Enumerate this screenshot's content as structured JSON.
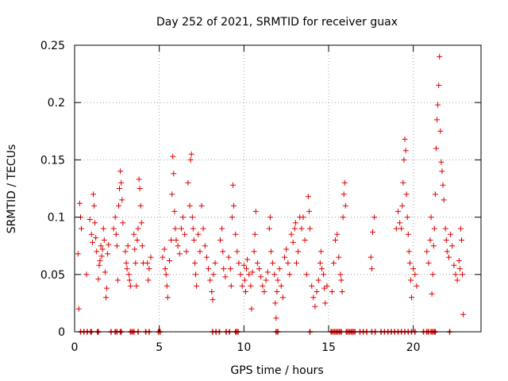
{
  "chart_data": {
    "type": "scatter",
    "title": "Day 252 of 2021, SRMTID for receiver guax",
    "xlabel": "GPS time / hours",
    "ylabel": "SRMTID / TECUs",
    "xlim": [
      0,
      24
    ],
    "ylim": [
      0,
      0.25
    ],
    "xticks": [
      0,
      5,
      10,
      15,
      20
    ],
    "xtick_labels": [
      "0",
      "5",
      "10",
      "15",
      "20"
    ],
    "yticks": [
      0,
      0.05,
      0.1,
      0.15,
      0.2,
      0.25
    ],
    "ytick_labels": [
      "0",
      "0.05",
      "0.1",
      "0.15",
      "0.2",
      "0.25"
    ],
    "grid": true,
    "marker": "+",
    "colors": {
      "series": "#e00000",
      "grid": "#a0a0a0",
      "axis": "#000000"
    },
    "series": [
      {
        "name": "SRMTID",
        "points": [
          [
            0.2,
            0.068
          ],
          [
            0.25,
            0.02
          ],
          [
            0.3,
            0.112
          ],
          [
            0.35,
            0.1
          ],
          [
            0.4,
            0.09
          ],
          [
            0.7,
            0.05
          ],
          [
            0.9,
            0.098
          ],
          [
            1.0,
            0.085
          ],
          [
            1.05,
            0.078
          ],
          [
            1.1,
            0.12
          ],
          [
            1.15,
            0.11
          ],
          [
            1.2,
            0.095
          ],
          [
            1.25,
            0.082
          ],
          [
            1.3,
            0.07
          ],
          [
            1.4,
            0.046
          ],
          [
            1.45,
            0.058
          ],
          [
            1.5,
            0.062
          ],
          [
            1.55,
            0.075
          ],
          [
            1.6,
            0.066
          ],
          [
            1.65,
            0.072
          ],
          [
            1.7,
            0.09
          ],
          [
            1.75,
            0.08
          ],
          [
            1.8,
            0.052
          ],
          [
            1.85,
            0.03
          ],
          [
            1.9,
            0.038
          ],
          [
            1.95,
            0.068
          ],
          [
            2.0,
            0.076
          ],
          [
            2.3,
            0.09
          ],
          [
            2.4,
            0.1
          ],
          [
            2.45,
            0.085
          ],
          [
            2.5,
            0.075
          ],
          [
            2.55,
            0.045
          ],
          [
            2.6,
            0.11
          ],
          [
            2.65,
            0.125
          ],
          [
            2.7,
            0.14
          ],
          [
            2.75,
            0.13
          ],
          [
            2.8,
            0.115
          ],
          [
            2.85,
            0.095
          ],
          [
            3.0,
            0.07
          ],
          [
            3.05,
            0.06
          ],
          [
            3.1,
            0.055
          ],
          [
            3.15,
            0.075
          ],
          [
            3.2,
            0.05
          ],
          [
            3.25,
            0.045
          ],
          [
            3.3,
            0.04
          ],
          [
            3.5,
            0.085
          ],
          [
            3.55,
            0.072
          ],
          [
            3.6,
            0.06
          ],
          [
            3.65,
            0.04
          ],
          [
            3.7,
            0.08
          ],
          [
            3.75,
            0.09
          ],
          [
            3.8,
            0.133
          ],
          [
            3.85,
            0.125
          ],
          [
            3.9,
            0.11
          ],
          [
            3.95,
            0.095
          ],
          [
            4.0,
            0.075
          ],
          [
            4.05,
            0.06
          ],
          [
            4.3,
            0.06
          ],
          [
            4.35,
            0.045
          ],
          [
            4.4,
            0.055
          ],
          [
            4.5,
            0.065
          ],
          [
            5.2,
            0.065
          ],
          [
            5.3,
            0.072
          ],
          [
            5.35,
            0.055
          ],
          [
            5.4,
            0.05
          ],
          [
            5.45,
            0.04
          ],
          [
            5.5,
            0.03
          ],
          [
            5.6,
            0.062
          ],
          [
            5.7,
            0.08
          ],
          [
            5.75,
            0.12
          ],
          [
            5.8,
            0.153
          ],
          [
            5.85,
            0.138
          ],
          [
            5.9,
            0.105
          ],
          [
            5.95,
            0.09
          ],
          [
            6.0,
            0.08
          ],
          [
            6.1,
            0.075
          ],
          [
            6.2,
            0.068
          ],
          [
            6.3,
            0.09
          ],
          [
            6.4,
            0.1
          ],
          [
            6.5,
            0.085
          ],
          [
            6.6,
            0.07
          ],
          [
            6.7,
            0.13
          ],
          [
            6.8,
            0.11
          ],
          [
            6.85,
            0.15
          ],
          [
            6.9,
            0.155
          ],
          [
            6.95,
            0.1
          ],
          [
            7.0,
            0.09
          ],
          [
            7.05,
            0.08
          ],
          [
            7.1,
            0.06
          ],
          [
            7.15,
            0.05
          ],
          [
            7.2,
            0.04
          ],
          [
            7.3,
            0.085
          ],
          [
            7.4,
            0.07
          ],
          [
            7.5,
            0.11
          ],
          [
            7.6,
            0.09
          ],
          [
            7.7,
            0.075
          ],
          [
            7.8,
            0.065
          ],
          [
            7.9,
            0.055
          ],
          [
            8.0,
            0.045
          ],
          [
            8.1,
            0.035
          ],
          [
            8.15,
            0.028
          ],
          [
            8.2,
            0.05
          ],
          [
            8.3,
            0.06
          ],
          [
            8.6,
            0.08
          ],
          [
            8.7,
            0.09
          ],
          [
            8.75,
            0.07
          ],
          [
            8.8,
            0.055
          ],
          [
            8.9,
            0.048
          ],
          [
            9.1,
            0.065
          ],
          [
            9.2,
            0.055
          ],
          [
            9.25,
            0.04
          ],
          [
            9.3,
            0.1
          ],
          [
            9.35,
            0.128
          ],
          [
            9.4,
            0.11
          ],
          [
            9.5,
            0.085
          ],
          [
            9.6,
            0.07
          ],
          [
            9.7,
            0.06
          ],
          [
            9.8,
            0.05
          ],
          [
            9.9,
            0.04
          ],
          [
            10.0,
            0.058
          ],
          [
            10.05,
            0.045
          ],
          [
            10.1,
            0.035
          ],
          [
            10.15,
            0.055
          ],
          [
            10.2,
            0.063
          ],
          [
            10.3,
            0.05
          ],
          [
            10.4,
            0.04
          ],
          [
            10.45,
            0.02
          ],
          [
            10.5,
            0.052
          ],
          [
            10.6,
            0.07
          ],
          [
            10.65,
            0.085
          ],
          [
            10.7,
            0.105
          ],
          [
            10.8,
            0.06
          ],
          [
            10.9,
            0.055
          ],
          [
            11.0,
            0.048
          ],
          [
            11.1,
            0.04
          ],
          [
            11.2,
            0.035
          ],
          [
            11.3,
            0.045
          ],
          [
            11.4,
            0.052
          ],
          [
            11.5,
            0.09
          ],
          [
            11.55,
            0.1
          ],
          [
            11.6,
            0.07
          ],
          [
            11.7,
            0.06
          ],
          [
            11.8,
            0.05
          ],
          [
            11.85,
            0.025
          ],
          [
            11.9,
            0.012
          ],
          [
            11.95,
            0.035
          ],
          [
            12.0,
            0.045
          ],
          [
            12.1,
            0.055
          ],
          [
            12.2,
            0.04
          ],
          [
            12.3,
            0.03
          ],
          [
            12.4,
            0.065
          ],
          [
            12.5,
            0.072
          ],
          [
            12.6,
            0.06
          ],
          [
            12.7,
            0.05
          ],
          [
            12.8,
            0.085
          ],
          [
            12.9,
            0.078
          ],
          [
            13.0,
            0.09
          ],
          [
            13.05,
            0.095
          ],
          [
            13.1,
            0.06
          ],
          [
            13.2,
            0.07
          ],
          [
            13.3,
            0.1
          ],
          [
            13.4,
            0.09
          ],
          [
            13.5,
            0.1
          ],
          [
            13.6,
            0.08
          ],
          [
            13.7,
            0.05
          ],
          [
            13.8,
            0.118
          ],
          [
            13.85,
            0.105
          ],
          [
            13.9,
            0.09
          ],
          [
            14.0,
            0.04
          ],
          [
            14.1,
            0.03
          ],
          [
            14.2,
            0.022
          ],
          [
            14.3,
            0.035
          ],
          [
            14.4,
            0.045
          ],
          [
            14.5,
            0.06
          ],
          [
            14.55,
            0.07
          ],
          [
            14.6,
            0.055
          ],
          [
            14.7,
            0.05
          ],
          [
            14.75,
            0.038
          ],
          [
            14.8,
            0.025
          ],
          [
            14.9,
            0.04
          ],
          [
            15.2,
            0.035
          ],
          [
            15.3,
            0.06
          ],
          [
            15.4,
            0.08
          ],
          [
            15.5,
            0.085
          ],
          [
            15.6,
            0.065
          ],
          [
            15.7,
            0.05
          ],
          [
            15.75,
            0.045
          ],
          [
            15.8,
            0.035
          ],
          [
            15.85,
            0.1
          ],
          [
            15.9,
            0.12
          ],
          [
            15.95,
            0.13
          ],
          [
            16.0,
            0.11
          ],
          [
            17.5,
            0.065
          ],
          [
            17.55,
            0.055
          ],
          [
            17.6,
            0.087
          ],
          [
            17.7,
            0.1
          ],
          [
            19.0,
            0.09
          ],
          [
            19.1,
            0.105
          ],
          [
            19.2,
            0.095
          ],
          [
            19.3,
            0.09
          ],
          [
            19.35,
            0.11
          ],
          [
            19.4,
            0.13
          ],
          [
            19.45,
            0.15
          ],
          [
            19.5,
            0.168
          ],
          [
            19.55,
            0.158
          ],
          [
            19.6,
            0.12
          ],
          [
            19.65,
            0.1
          ],
          [
            19.7,
            0.085
          ],
          [
            19.75,
            0.07
          ],
          [
            19.8,
            0.06
          ],
          [
            19.85,
            0.045
          ],
          [
            19.9,
            0.03
          ],
          [
            20.0,
            0.055
          ],
          [
            20.1,
            0.05
          ],
          [
            20.2,
            0.04
          ],
          [
            20.8,
            0.07
          ],
          [
            20.9,
            0.06
          ],
          [
            21.0,
            0.08
          ],
          [
            21.05,
            0.1
          ],
          [
            21.1,
            0.033
          ],
          [
            21.15,
            0.05
          ],
          [
            21.2,
            0.075
          ],
          [
            21.25,
            0.09
          ],
          [
            21.3,
            0.12
          ],
          [
            21.35,
            0.16
          ],
          [
            21.4,
            0.185
          ],
          [
            21.45,
            0.198
          ],
          [
            21.5,
            0.215
          ],
          [
            21.55,
            0.24
          ],
          [
            21.6,
            0.175
          ],
          [
            21.65,
            0.148
          ],
          [
            21.7,
            0.14
          ],
          [
            21.75,
            0.128
          ],
          [
            21.8,
            0.115
          ],
          [
            21.9,
            0.09
          ],
          [
            21.95,
            0.08
          ],
          [
            22.0,
            0.07
          ],
          [
            22.1,
            0.065
          ],
          [
            22.2,
            0.085
          ],
          [
            22.3,
            0.075
          ],
          [
            22.4,
            0.058
          ],
          [
            22.5,
            0.05
          ],
          [
            22.6,
            0.045
          ],
          [
            22.7,
            0.062
          ],
          [
            22.75,
            0.055
          ],
          [
            22.8,
            0.09
          ],
          [
            22.85,
            0.08
          ],
          [
            22.9,
            0.05
          ],
          [
            22.95,
            0.015
          ]
        ],
        "zero_points": [
          0.35,
          0.55,
          0.75,
          0.95,
          1.0,
          1.35,
          1.4,
          2.15,
          2.4,
          2.5,
          2.7,
          2.75,
          3.3,
          3.4,
          3.5,
          3.75,
          4.2,
          4.4,
          4.95,
          5.05,
          8.15,
          8.35,
          8.55,
          8.95,
          9.15,
          9.5,
          9.55,
          9.65,
          11.9,
          12.0,
          13.9,
          15.15,
          15.25,
          15.35,
          15.45,
          15.55,
          15.65,
          15.75,
          16.05,
          16.15,
          16.25,
          16.35,
          16.45,
          16.55,
          16.85,
          17.05,
          17.25,
          17.55,
          17.75,
          18.1,
          18.3,
          18.5,
          18.7,
          18.9,
          19.1,
          19.3,
          19.5,
          19.7,
          19.9,
          20.1,
          20.6,
          20.8,
          20.9,
          21.05,
          21.15,
          21.25,
          21.3,
          22.15
        ]
      }
    ]
  }
}
